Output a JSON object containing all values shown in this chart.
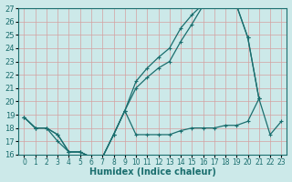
{
  "xlabel": "Humidex (Indice chaleur)",
  "xlim": [
    -0.5,
    23.5
  ],
  "ylim": [
    16,
    27
  ],
  "xticks": [
    0,
    1,
    2,
    3,
    4,
    5,
    6,
    7,
    8,
    9,
    10,
    11,
    12,
    13,
    14,
    15,
    16,
    17,
    18,
    19,
    20,
    21,
    22,
    23
  ],
  "yticks": [
    16,
    17,
    18,
    19,
    20,
    21,
    22,
    23,
    24,
    25,
    26,
    27
  ],
  "bg_color": "#cce9e9",
  "line_color": "#1a6e6e",
  "grid_color": "#b0d8d8",
  "curve1_x": [
    0,
    1,
    2,
    3,
    4,
    5,
    6,
    7,
    8,
    9,
    10,
    11,
    12,
    13,
    14,
    15,
    16,
    17,
    18,
    19,
    20,
    21
  ],
  "curve1_y": [
    18.8,
    18.0,
    18.0,
    17.5,
    16.2,
    16.2,
    15.8,
    15.8,
    17.5,
    19.3,
    21.0,
    21.8,
    22.5,
    23.0,
    24.5,
    25.8,
    27.2,
    27.3,
    27.2,
    27.2,
    24.8,
    20.2
  ],
  "curve2_x": [
    0,
    1,
    2,
    3,
    4,
    5,
    6,
    7,
    8,
    9,
    10,
    11,
    12,
    13,
    14,
    15,
    16,
    17,
    18,
    19,
    20,
    21
  ],
  "curve2_y": [
    18.8,
    18.0,
    18.0,
    17.5,
    16.2,
    16.2,
    15.8,
    15.8,
    17.5,
    19.3,
    21.5,
    22.5,
    23.3,
    24.0,
    25.5,
    26.5,
    27.3,
    27.3,
    27.2,
    27.2,
    24.8,
    20.2
  ],
  "curve3_x": [
    0,
    1,
    2,
    3,
    4,
    5,
    6,
    7,
    8,
    9,
    10,
    11,
    12,
    13,
    14,
    15,
    16,
    17,
    18,
    19,
    20,
    21,
    22,
    23
  ],
  "curve3_y": [
    18.8,
    18.0,
    18.0,
    17.0,
    16.2,
    16.2,
    15.8,
    15.8,
    17.5,
    19.3,
    17.5,
    17.5,
    17.5,
    17.5,
    17.8,
    18.0,
    18.0,
    18.0,
    18.2,
    18.2,
    18.5,
    20.2,
    17.5,
    18.5
  ],
  "fontsize_xlabel": 7,
  "fontsize_ytick": 6,
  "fontsize_xtick": 5.5
}
